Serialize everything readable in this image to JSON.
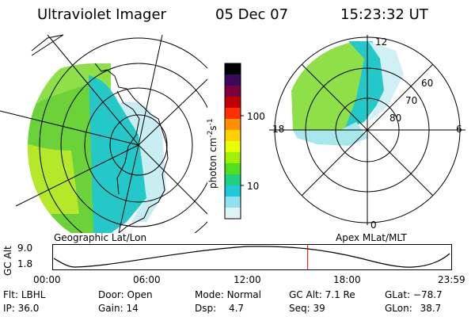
{
  "header": {
    "instrument": "Ultraviolet Imager",
    "date": "05 Dec 07",
    "time": "15:23:32 UT"
  },
  "left_panel": {
    "caption": "Geographic Lat/Lon"
  },
  "right_panel": {
    "caption": "Apex MLat/MLT",
    "mlt_labels": {
      "top": "12",
      "left": "18",
      "right": "6",
      "bottom": "0"
    },
    "lat_labels": [
      "60",
      "70",
      "80"
    ]
  },
  "colorbar": {
    "unit_label": "photon cm",
    "unit_exp_main": "-2",
    "unit_exp_s": "-1",
    "unit_s": "s",
    "ticks": [
      "100",
      "10"
    ],
    "colors": [
      "#000000",
      "#3a0a5a",
      "#7a0040",
      "#c00000",
      "#ff3000",
      "#ff9000",
      "#ffd000",
      "#e8ff00",
      "#a0f000",
      "#50e020",
      "#20d080",
      "#20c8d8",
      "#90e0ee",
      "#e0f4f8"
    ]
  },
  "altitude_plot": {
    "ylabel": "GC Alt",
    "yticks": [
      "9.0",
      "1.8"
    ],
    "xticks": [
      "00:00",
      "06:00",
      "12:00",
      "18:00",
      "23:59"
    ],
    "cursor_hour": 15.39
  },
  "info": {
    "row1": [
      {
        "label": "Flt:",
        "value": "LBHL"
      },
      {
        "label": "Door:",
        "value": "Open"
      },
      {
        "label": "Mode:",
        "value": "Normal"
      },
      {
        "label": "GC Alt:",
        "value": "7.1 Re"
      },
      {
        "label": "GLat:",
        "value": "−78.7"
      }
    ],
    "row2": [
      {
        "label": "IP:",
        "value": "36.0"
      },
      {
        "label": "Gain:",
        "value": "14"
      },
      {
        "label": "Dsp:",
        "value": "4.7"
      },
      {
        "label": "Seq:",
        "value": "39"
      },
      {
        "label": "GLon:",
        "value": "38.7"
      }
    ]
  }
}
